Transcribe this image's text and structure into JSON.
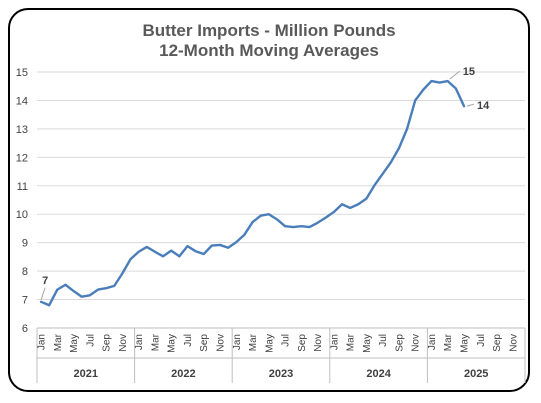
{
  "chart_data": {
    "type": "line",
    "title": "Butter Imports - Million Pounds",
    "subtitle": "12-Month Moving Averages",
    "xlabel": "",
    "ylabel": "",
    "ylim": [
      6,
      15
    ],
    "yticks": [
      "6",
      "7",
      "8",
      "9",
      "10",
      "11",
      "12",
      "13",
      "14",
      "15"
    ],
    "grid": true,
    "legend": "none",
    "line_color": "#4a7ebb",
    "month_ticks": [
      "Jan",
      "Mar",
      "May",
      "Jul",
      "Sep",
      "Nov",
      "Jan",
      "Mar",
      "May",
      "Jul",
      "Sep",
      "Nov",
      "Jan",
      "Mar",
      "May",
      "Jul",
      "Sep",
      "Nov",
      "Jan",
      "Mar",
      "May",
      "Jul",
      "Sep",
      "Nov",
      "Jan",
      "Mar",
      "May",
      "Jul",
      "Sep",
      "Nov"
    ],
    "year_labels": [
      "2021",
      "2022",
      "2023",
      "2024",
      "2025"
    ],
    "series": [
      {
        "x_start": "2021-01",
        "values": [
          6.92,
          6.8,
          7.35,
          7.52,
          7.3,
          7.1,
          7.15,
          7.35,
          7.4,
          7.48,
          7.92,
          8.42,
          8.68,
          8.85,
          8.68,
          8.52,
          8.72,
          8.52,
          8.88,
          8.7,
          8.6,
          8.9,
          8.92,
          8.82,
          9.02,
          9.28,
          9.72,
          9.95,
          10.0,
          9.82,
          9.58,
          9.55,
          9.58,
          9.55,
          9.7,
          9.88,
          10.08,
          10.35,
          10.22,
          10.35,
          10.55,
          11.02,
          11.42,
          11.82,
          12.32,
          13.0,
          14.0,
          14.38,
          14.68,
          14.63,
          14.68,
          14.42,
          13.8
        ]
      }
    ],
    "annotations": [
      {
        "label": "7",
        "value": 6.92,
        "at": "2021-01"
      },
      {
        "label": "15",
        "value": 14.68,
        "at": "2025-03"
      },
      {
        "label": "14",
        "value": 13.8,
        "at": "2025-05"
      }
    ]
  }
}
